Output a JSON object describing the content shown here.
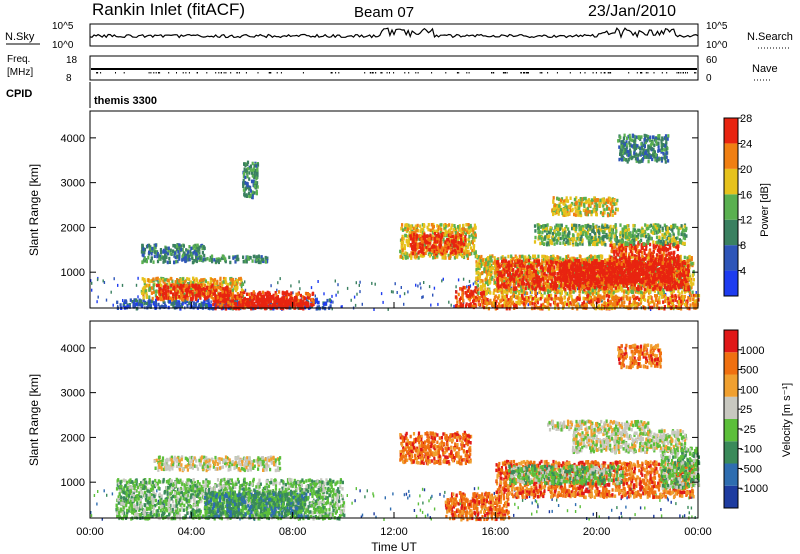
{
  "header": {
    "station": "Rankin Inlet (fitACF)",
    "beam": "Beam 07",
    "date": "23/Jan/2010"
  },
  "strips": {
    "noise": {
      "left_label": "N.Sky",
      "right_label": "N.Search",
      "left_ticks": [
        "10^5",
        "10^0"
      ],
      "right_ticks": [
        "10^5",
        "10^0"
      ]
    },
    "freq": {
      "left_label_line1": "Freq.",
      "left_label_line2": "[MHz]",
      "right_label": "Nave",
      "left_ticks": [
        "18",
        "8"
      ],
      "right_ticks": [
        "60",
        "0"
      ]
    },
    "cpid": {
      "label": "CPID",
      "value": "themis 3300"
    }
  },
  "chart_data": [
    {
      "type": "heatmap",
      "title": "",
      "ylabel": "Slant Range [km]",
      "xlabel": "",
      "ylim": [
        200,
        4600
      ],
      "yticks": [
        1000,
        2000,
        3000,
        4000
      ],
      "x_range_hours": [
        0,
        24
      ],
      "colorbar": {
        "label": "Power [dB]",
        "ticks": [
          "4",
          "8",
          "12",
          "16",
          "20",
          "24",
          "28"
        ],
        "colors": [
          "#1e3cf0",
          "#2e55b8",
          "#3a8060",
          "#5ab050",
          "#e6c21c",
          "#f07f12",
          "#e82410"
        ]
      },
      "regions": [
        {
          "t0": 2.0,
          "t1": 4.5,
          "r0": 1250,
          "r1": 1650,
          "level": 2
        },
        {
          "t0": 4.5,
          "t1": 7.0,
          "r0": 1250,
          "r1": 1400,
          "level": 2
        },
        {
          "t0": 1.0,
          "t1": 9.5,
          "r0": 220,
          "r1": 420,
          "level": 1
        },
        {
          "t0": 2.0,
          "t1": 6.0,
          "r0": 450,
          "r1": 900,
          "level": 4
        },
        {
          "t0": 2.6,
          "t1": 5.4,
          "r0": 420,
          "r1": 750,
          "level": 6
        },
        {
          "t0": 4.8,
          "t1": 8.8,
          "r0": 220,
          "r1": 600,
          "level": 6
        },
        {
          "t0": 6.0,
          "t1": 8.5,
          "r0": 250,
          "r1": 480,
          "level": 7
        },
        {
          "t0": 12.2,
          "t1": 15.2,
          "r0": 1350,
          "r1": 2100,
          "level": 4
        },
        {
          "t0": 12.6,
          "t1": 14.8,
          "r0": 1450,
          "r1": 1900,
          "level": 6
        },
        {
          "t0": 14.4,
          "t1": 15.6,
          "r0": 250,
          "r1": 700,
          "level": 6
        },
        {
          "t0": 15.2,
          "t1": 23.8,
          "r0": 550,
          "r1": 1400,
          "level": 4
        },
        {
          "t0": 16.0,
          "t1": 23.6,
          "r0": 650,
          "r1": 1300,
          "level": 6
        },
        {
          "t0": 18.5,
          "t1": 23.0,
          "r0": 800,
          "r1": 1250,
          "level": 7
        },
        {
          "t0": 20.5,
          "t1": 23.2,
          "r0": 1200,
          "r1": 1700,
          "level": 6
        },
        {
          "t0": 17.5,
          "t1": 23.5,
          "r0": 1650,
          "r1": 2100,
          "level": 3
        },
        {
          "t0": 15.5,
          "t1": 24.0,
          "r0": 220,
          "r1": 520,
          "level": 5
        },
        {
          "t0": 20.8,
          "t1": 22.8,
          "r0": 3500,
          "r1": 4100,
          "level": 2
        },
        {
          "t0": 18.2,
          "t1": 20.8,
          "r0": 2300,
          "r1": 2700,
          "level": 4
        },
        {
          "t0": 6.0,
          "t1": 6.6,
          "r0": 2700,
          "r1": 3500,
          "level": 2
        }
      ]
    },
    {
      "type": "heatmap",
      "title": "",
      "ylabel": "Slant Range [km]",
      "xlabel": "Time UT",
      "ylim": [
        200,
        4600
      ],
      "yticks": [
        1000,
        2000,
        3000,
        4000
      ],
      "x_range_hours": [
        0,
        24
      ],
      "xticks": [
        "00:00",
        "04:00",
        "08:00",
        "12:00",
        "16:00",
        "20:00",
        "00:00"
      ],
      "colorbar": {
        "label": "Velocity [m s⁻¹]",
        "ticks": [
          "1000",
          "500",
          "100",
          "25",
          "-25",
          "-100",
          "-500",
          "-1000"
        ],
        "colors": [
          "#1e3ca0",
          "#2e6db0",
          "#3a8a5a",
          "#5cbf3a",
          "#c8c8c0",
          "#f0a030",
          "#f07010",
          "#e01818"
        ]
      },
      "regions": [
        {
          "t0": 1.0,
          "t1": 10.0,
          "r0": 220,
          "r1": 1100,
          "level": 3
        },
        {
          "t0": 4.5,
          "t1": 8.5,
          "r0": 250,
          "r1": 800,
          "level": 2
        },
        {
          "t0": 2.5,
          "t1": 7.5,
          "r0": 1300,
          "r1": 1600,
          "level": 4
        },
        {
          "t0": 12.2,
          "t1": 15.0,
          "r0": 1450,
          "r1": 2150,
          "level": 6
        },
        {
          "t0": 14.0,
          "t1": 16.5,
          "r0": 200,
          "r1": 800,
          "level": 6
        },
        {
          "t0": 16.0,
          "t1": 23.8,
          "r0": 700,
          "r1": 1500,
          "level": 6
        },
        {
          "t0": 16.5,
          "t1": 21.0,
          "r0": 1000,
          "r1": 1400,
          "level": 3
        },
        {
          "t0": 19.0,
          "t1": 23.5,
          "r0": 1700,
          "r1": 2200,
          "level": 4
        },
        {
          "t0": 18.0,
          "t1": 22.0,
          "r0": 2200,
          "r1": 2400,
          "level": 4
        },
        {
          "t0": 20.8,
          "t1": 22.5,
          "r0": 3600,
          "r1": 4100,
          "level": 6
        },
        {
          "t0": 22.5,
          "t1": 24.0,
          "r0": 900,
          "r1": 1800,
          "level": 3
        }
      ]
    }
  ]
}
